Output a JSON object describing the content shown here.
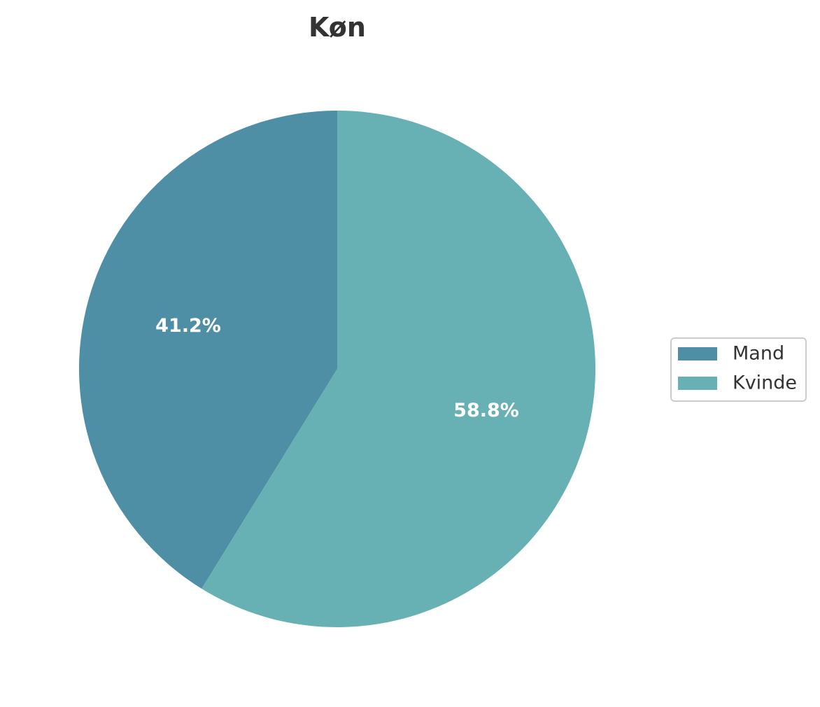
{
  "chart_data": {
    "type": "pie",
    "title": "Køn",
    "start_angle_deg": 90,
    "direction": "counterclockwise",
    "slices": [
      {
        "label": "Mand",
        "value": 41.2,
        "pct_label": "41.2%",
        "color": "#4f8fa6"
      },
      {
        "label": "Kvinde",
        "value": 58.8,
        "pct_label": "58.8%",
        "color": "#67b0b3"
      }
    ],
    "legend": {
      "position": "right",
      "entries": [
        "Mand",
        "Kvinde"
      ]
    }
  }
}
